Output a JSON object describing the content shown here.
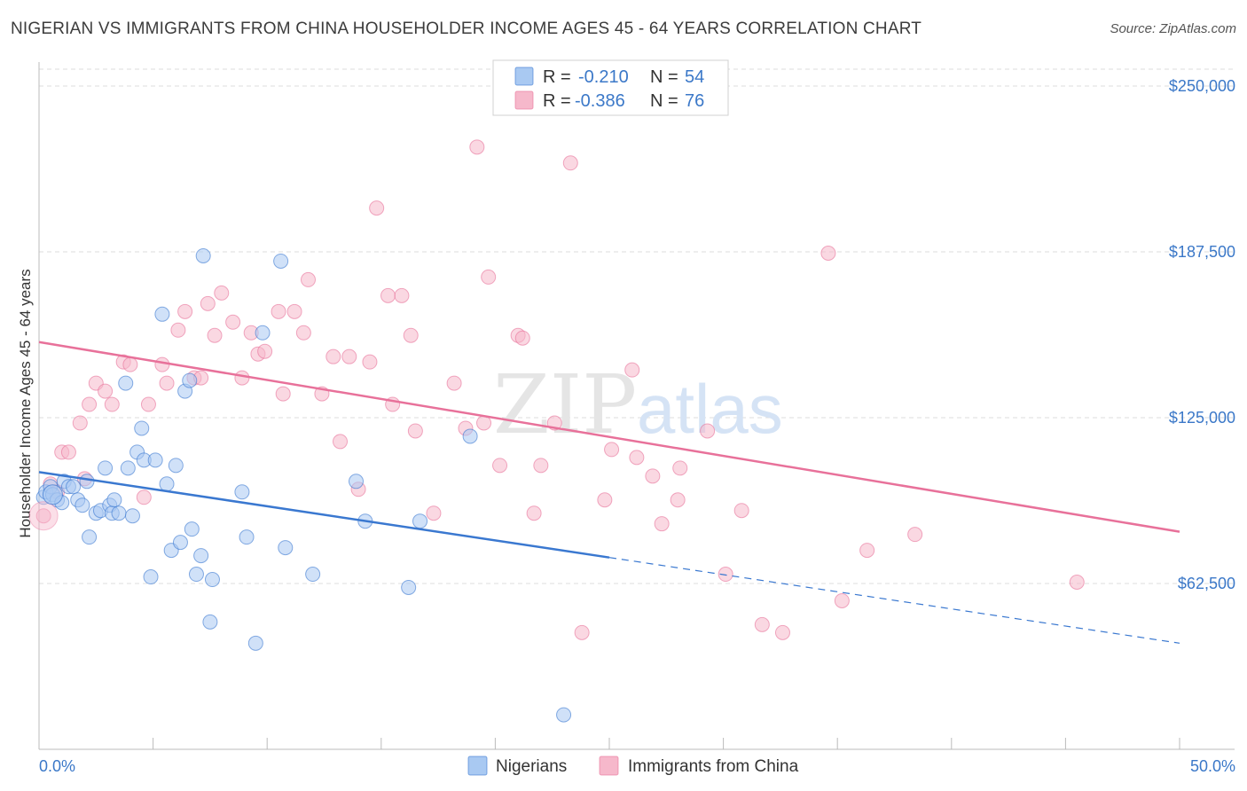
{
  "title": "NIGERIAN VS IMMIGRANTS FROM CHINA HOUSEHOLDER INCOME AGES 45 - 64 YEARS CORRELATION CHART",
  "source": "Source: ZipAtlas.com",
  "watermark": {
    "part1": "ZIP",
    "part2": "atlas"
  },
  "legend_top": {
    "rows": [
      {
        "r_label": "R =",
        "r_value": "-0.210",
        "n_label": "N =",
        "n_value": "54",
        "color": "#a9c9f2"
      },
      {
        "r_label": "R =",
        "r_value": "-0.386",
        "n_label": "N =",
        "n_value": "76",
        "color": "#f6b8cb"
      }
    ]
  },
  "chart_data": {
    "type": "scatter",
    "xlabel": "",
    "ylabel": "Householder Income Ages 45 - 64 years",
    "x_tick_labels": [
      "0.0%",
      "50.0%"
    ],
    "y_tick_labels": [
      "$62,500",
      "$125,000",
      "$187,500",
      "$250,000"
    ],
    "y_ticks": [
      62500,
      125000,
      187500,
      250000
    ],
    "xlim": [
      0,
      50
    ],
    "ylim": [
      0,
      262000
    ],
    "grid": true,
    "legend_position": "bottom",
    "series": [
      {
        "name": "Nigerians",
        "color": "#3a78d0",
        "fill": "#a9c9f2",
        "trend": {
          "x0": 0,
          "y0": 104500,
          "x1": 25,
          "y1": 72300,
          "dash_to_x": 50,
          "dash_to_y": 40000
        },
        "points": [
          [
            0.2,
            95000
          ],
          [
            0.3,
            97000
          ],
          [
            0.5,
            99000
          ],
          [
            0.6,
            96000
          ],
          [
            0.8,
            94000
          ],
          [
            1.0,
            93000
          ],
          [
            1.1,
            101000
          ],
          [
            1.3,
            99000
          ],
          [
            1.5,
            99000
          ],
          [
            1.7,
            94000
          ],
          [
            1.9,
            92000
          ],
          [
            2.1,
            101000
          ],
          [
            2.2,
            80000
          ],
          [
            2.5,
            89000
          ],
          [
            2.7,
            90000
          ],
          [
            2.9,
            106000
          ],
          [
            3.1,
            92000
          ],
          [
            3.2,
            89000
          ],
          [
            3.3,
            94000
          ],
          [
            3.5,
            89000
          ],
          [
            3.8,
            138000
          ],
          [
            3.9,
            106000
          ],
          [
            4.1,
            88000
          ],
          [
            4.3,
            112000
          ],
          [
            4.5,
            121000
          ],
          [
            4.6,
            109000
          ],
          [
            4.9,
            65000
          ],
          [
            5.1,
            109000
          ],
          [
            5.4,
            164000
          ],
          [
            5.6,
            100000
          ],
          [
            5.8,
            75000
          ],
          [
            6.0,
            107000
          ],
          [
            6.2,
            78000
          ],
          [
            6.4,
            135000
          ],
          [
            6.6,
            139000
          ],
          [
            6.7,
            83000
          ],
          [
            6.9,
            66000
          ],
          [
            7.1,
            73000
          ],
          [
            7.2,
            186000
          ],
          [
            7.5,
            48000
          ],
          [
            7.6,
            64000
          ],
          [
            8.9,
            97000
          ],
          [
            9.1,
            80000
          ],
          [
            9.5,
            40000
          ],
          [
            9.8,
            157000
          ],
          [
            10.8,
            76000
          ],
          [
            10.6,
            184000
          ],
          [
            12.0,
            66000
          ],
          [
            13.9,
            101000
          ],
          [
            14.3,
            86000
          ],
          [
            16.2,
            61000
          ],
          [
            16.7,
            86000
          ],
          [
            18.9,
            118000
          ],
          [
            23.0,
            13000
          ]
        ]
      },
      {
        "name": "Immigrants from China",
        "color": "#e8719a",
        "fill": "#f6b8cb",
        "trend": {
          "x0": 0,
          "y0": 153500,
          "x1": 50,
          "y1": 82000
        },
        "points": [
          [
            0.2,
            88000
          ],
          [
            0.5,
            100000
          ],
          [
            0.8,
            97000
          ],
          [
            1.0,
            112000
          ],
          [
            1.3,
            112000
          ],
          [
            1.8,
            123000
          ],
          [
            2.0,
            102000
          ],
          [
            2.2,
            130000
          ],
          [
            2.5,
            138000
          ],
          [
            2.9,
            135000
          ],
          [
            3.2,
            130000
          ],
          [
            3.7,
            146000
          ],
          [
            4.0,
            145000
          ],
          [
            4.6,
            95000
          ],
          [
            4.8,
            130000
          ],
          [
            5.4,
            145000
          ],
          [
            5.6,
            138000
          ],
          [
            6.1,
            158000
          ],
          [
            6.4,
            165000
          ],
          [
            6.8,
            140000
          ],
          [
            7.1,
            140000
          ],
          [
            7.4,
            168000
          ],
          [
            7.7,
            156000
          ],
          [
            8.0,
            172000
          ],
          [
            8.5,
            161000
          ],
          [
            8.9,
            140000
          ],
          [
            9.3,
            157000
          ],
          [
            9.6,
            149000
          ],
          [
            9.9,
            150000
          ],
          [
            10.5,
            165000
          ],
          [
            10.7,
            134000
          ],
          [
            11.2,
            165000
          ],
          [
            11.6,
            157000
          ],
          [
            11.8,
            177000
          ],
          [
            12.4,
            134000
          ],
          [
            12.9,
            148000
          ],
          [
            13.2,
            116000
          ],
          [
            13.6,
            148000
          ],
          [
            14.0,
            98000
          ],
          [
            14.5,
            146000
          ],
          [
            14.8,
            204000
          ],
          [
            15.3,
            171000
          ],
          [
            15.5,
            130000
          ],
          [
            15.9,
            171000
          ],
          [
            16.3,
            156000
          ],
          [
            16.5,
            120000
          ],
          [
            17.3,
            89000
          ],
          [
            18.2,
            138000
          ],
          [
            18.7,
            121000
          ],
          [
            19.2,
            227000
          ],
          [
            19.5,
            123000
          ],
          [
            19.7,
            178000
          ],
          [
            20.2,
            107000
          ],
          [
            21.0,
            156000
          ],
          [
            21.2,
            155000
          ],
          [
            21.7,
            89000
          ],
          [
            22.0,
            107000
          ],
          [
            22.6,
            123000
          ],
          [
            23.3,
            221000
          ],
          [
            23.8,
            44000
          ],
          [
            24.8,
            94000
          ],
          [
            25.1,
            113000
          ],
          [
            26.0,
            143000
          ],
          [
            26.2,
            110000
          ],
          [
            26.9,
            103000
          ],
          [
            27.3,
            85000
          ],
          [
            28.0,
            94000
          ],
          [
            28.1,
            106000
          ],
          [
            29.3,
            120000
          ],
          [
            30.1,
            66000
          ],
          [
            30.8,
            90000
          ],
          [
            31.7,
            47000
          ],
          [
            32.6,
            44000
          ],
          [
            34.6,
            187000
          ],
          [
            35.2,
            56000
          ],
          [
            36.3,
            75000
          ],
          [
            38.4,
            81000
          ],
          [
            45.5,
            63000
          ]
        ]
      }
    ]
  }
}
